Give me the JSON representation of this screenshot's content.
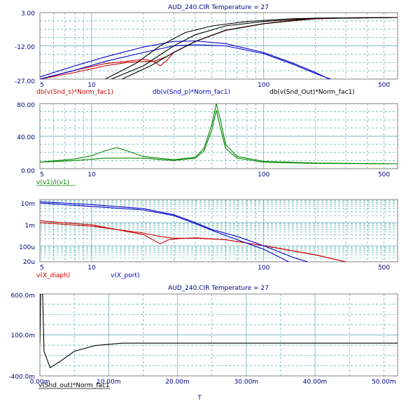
{
  "colors": {
    "axis_text": "#000080",
    "grid": "#55aaaa",
    "frame": "#808080",
    "red": "#cc0000",
    "blue": "#0000cc",
    "black": "#000000",
    "green": "#008800"
  },
  "chart_data": [
    {
      "type": "line",
      "title": "AUD_240.CIR Temperature = 27",
      "xscale": "log",
      "xlim": [
        5,
        600
      ],
      "ylim": [
        -27,
        3
      ],
      "yticks": [
        "3.00",
        "-12.00",
        "-27.00"
      ],
      "xticks": [
        "5",
        "10",
        "100",
        "500"
      ],
      "legend": [
        {
          "text": "db(v(Snd_s)*Norm_fac1)",
          "color": "#cc0000"
        },
        {
          "text": "db(v(Snd_p)*Norm_fac1)",
          "color": "#0000cc"
        },
        {
          "text": "db(v(Snd_Out)*Norm_fac1)",
          "color": "#000000"
        }
      ],
      "series": [
        {
          "color": "#cc0000",
          "points": [
            [
              5,
              -27
            ],
            [
              8,
              -23
            ],
            [
              12,
              -20
            ],
            [
              16,
              -19
            ],
            [
              20,
              -18
            ],
            [
              23,
              -19
            ],
            [
              25,
              -21
            ],
            [
              27,
              -19
            ],
            [
              30,
              -15
            ],
            [
              40,
              -10
            ],
            [
              60,
              -5
            ],
            [
              100,
              -2
            ],
            [
              150,
              -0.5
            ],
            [
              200,
              0.2
            ],
            [
              300,
              0.6
            ],
            [
              600,
              0.8
            ]
          ]
        },
        {
          "color": "#cc0000",
          "points": [
            [
              5,
              -27
            ],
            [
              8,
              -24
            ],
            [
              12,
              -21
            ],
            [
              16,
              -19.5
            ],
            [
              20,
              -19
            ],
            [
              23,
              -19
            ],
            [
              27,
              -17
            ],
            [
              30,
              -15
            ],
            [
              40,
              -10
            ],
            [
              60,
              -5
            ],
            [
              100,
              -2
            ],
            [
              150,
              -0.5
            ],
            [
              200,
              0.2
            ],
            [
              300,
              0.6
            ],
            [
              600,
              0.8
            ]
          ]
        },
        {
          "color": "#0000cc",
          "points": [
            [
              5,
              -26
            ],
            [
              8,
              -21
            ],
            [
              12,
              -17
            ],
            [
              20,
              -12.5
            ],
            [
              30,
              -10
            ],
            [
              40,
              -9.8
            ],
            [
              60,
              -11
            ],
            [
              100,
              -15
            ],
            [
              150,
              -20
            ],
            [
              200,
              -24
            ],
            [
              240,
              -27
            ]
          ]
        },
        {
          "color": "#0000cc",
          "points": [
            [
              5,
              -27
            ],
            [
              8,
              -23
            ],
            [
              12,
              -19
            ],
            [
              20,
              -15
            ],
            [
              30,
              -12
            ],
            [
              40,
              -11.5
            ],
            [
              60,
              -12
            ],
            [
              100,
              -15.5
            ],
            [
              150,
              -20.5
            ],
            [
              200,
              -24.5
            ],
            [
              245,
              -27
            ]
          ]
        },
        {
          "color": "#000000",
          "points": [
            [
              13,
              -27
            ],
            [
              20,
              -21
            ],
            [
              30,
              -12
            ],
            [
              40,
              -7
            ],
            [
              60,
              -3
            ],
            [
              100,
              -1
            ],
            [
              200,
              0.5
            ],
            [
              600,
              0.8
            ]
          ]
        },
        {
          "color": "#000000",
          "points": [
            [
              15,
              -27
            ],
            [
              22,
              -21
            ],
            [
              30,
              -15
            ],
            [
              40,
              -10
            ],
            [
              60,
              -5
            ],
            [
              100,
              -2
            ],
            [
              200,
              0.3
            ],
            [
              600,
              0.8
            ]
          ]
        },
        {
          "color": "#000000",
          "points": [
            [
              12,
              -27
            ],
            [
              18,
              -20
            ],
            [
              25,
              -12
            ],
            [
              35,
              -6
            ],
            [
              50,
              -3
            ],
            [
              80,
              -1
            ],
            [
              150,
              0.3
            ],
            [
              600,
              0.8
            ]
          ]
        }
      ]
    },
    {
      "type": "line",
      "xscale": "log",
      "xlim": [
        5,
        600
      ],
      "ylim": [
        0,
        80
      ],
      "yticks": [
        "80.00",
        "40.00",
        "0.00"
      ],
      "xticks": [
        "5",
        "10",
        "100",
        "500"
      ],
      "legend": [
        {
          "text": "v(v1)/i(v1)",
          "color": "#008800"
        }
      ],
      "series": [
        {
          "color": "#008800",
          "points": [
            [
              5,
              8
            ],
            [
              8,
              12
            ],
            [
              10,
              16
            ],
            [
              12,
              22
            ],
            [
              14,
              26
            ],
            [
              16,
              22
            ],
            [
              20,
              15
            ],
            [
              30,
              11
            ],
            [
              40,
              14
            ],
            [
              45,
              25
            ],
            [
              50,
              55
            ],
            [
              53,
              80
            ],
            [
              56,
              60
            ],
            [
              60,
              30
            ],
            [
              70,
              15
            ],
            [
              100,
              9
            ],
            [
              200,
              7
            ],
            [
              600,
              6
            ]
          ]
        },
        {
          "color": "#008800",
          "points": [
            [
              5,
              8
            ],
            [
              8,
              10
            ],
            [
              12,
              13
            ],
            [
              20,
              13
            ],
            [
              30,
              10
            ],
            [
              40,
              13
            ],
            [
              45,
              22
            ],
            [
              50,
              48
            ],
            [
              53,
              72
            ],
            [
              56,
              50
            ],
            [
              60,
              25
            ],
            [
              70,
              13
            ],
            [
              100,
              8
            ],
            [
              200,
              6.5
            ],
            [
              600,
              6
            ]
          ]
        }
      ]
    },
    {
      "type": "line",
      "xscale": "log",
      "yscale": "log",
      "xlim": [
        5,
        600
      ],
      "ylim": [
        2e-05,
        0.01
      ],
      "yticks": [
        "10m",
        "1m",
        "100u",
        "20u"
      ],
      "xticks": [
        "5",
        "10",
        "100",
        "500"
      ],
      "legend": [
        {
          "text": "v(X_diaph)",
          "color": "#cc0000"
        },
        {
          "text": "v(X_port)",
          "color": "#0000cc"
        }
      ],
      "series": [
        {
          "color": "#cc0000",
          "points": [
            [
              5,
              0.0012
            ],
            [
              10,
              0.0008
            ],
            [
              20,
              0.0003
            ],
            [
              25,
              0.00012
            ],
            [
              28,
              0.00018
            ],
            [
              32,
              0.0002
            ],
            [
              40,
              0.00022
            ],
            [
              60,
              0.00018
            ],
            [
              100,
              0.0001
            ],
            [
              200,
              4e-05
            ],
            [
              300,
              2e-05
            ]
          ]
        },
        {
          "color": "#cc0000",
          "points": [
            [
              5,
              0.001
            ],
            [
              10,
              0.0007
            ],
            [
              20,
              0.00035
            ],
            [
              25,
              0.00025
            ],
            [
              30,
              0.00021
            ],
            [
              40,
              0.00021
            ],
            [
              60,
              0.00018
            ],
            [
              100,
              0.0001
            ],
            [
              200,
              4e-05
            ],
            [
              300,
              2e-05
            ]
          ]
        },
        {
          "color": "#0000cc",
          "points": [
            [
              5,
              0.008
            ],
            [
              10,
              0.006
            ],
            [
              20,
              0.004
            ],
            [
              30,
              0.0022
            ],
            [
              40,
              0.001
            ],
            [
              50,
              0.0005
            ],
            [
              70,
              0.00025
            ],
            [
              100,
              0.0001
            ],
            [
              150,
              3e-05
            ],
            [
              180,
              2e-05
            ]
          ]
        },
        {
          "color": "#0000cc",
          "points": [
            [
              5,
              0.007
            ],
            [
              10,
              0.005
            ],
            [
              20,
              0.0035
            ],
            [
              30,
              0.002
            ],
            [
              40,
              0.0009
            ],
            [
              55,
              0.00035
            ],
            [
              70,
              0.00018
            ],
            [
              100,
              7e-05
            ],
            [
              140,
              2e-05
            ]
          ]
        }
      ]
    },
    {
      "type": "line",
      "title": "AUD_240.CIR Temperature = 27",
      "xscale": "linear",
      "xlim": [
        0,
        0.052
      ],
      "ylim": [
        -400,
        600
      ],
      "yticks": [
        "600.0m",
        "100.0m",
        "-400.0m"
      ],
      "xticks": [
        "0.00m",
        "10.00m",
        "20.00m",
        "30.00m",
        "40.00m",
        "50.00m"
      ],
      "xlabel": "T",
      "legend": [
        {
          "text": "v(Snd_out)*Norm_fac1",
          "color": "#000000"
        }
      ],
      "series": [
        {
          "color": "#000000",
          "points": [
            [
              0,
              0
            ],
            [
              0.0001,
              600
            ],
            [
              0.0004,
              600
            ],
            [
              0.0006,
              -100
            ],
            [
              0.0015,
              -300
            ],
            [
              0.003,
              -220
            ],
            [
              0.005,
              -100
            ],
            [
              0.008,
              -30
            ],
            [
              0.012,
              0
            ],
            [
              0.02,
              0
            ],
            [
              0.03,
              0
            ],
            [
              0.04,
              0
            ],
            [
              0.052,
              0
            ]
          ]
        }
      ]
    }
  ]
}
